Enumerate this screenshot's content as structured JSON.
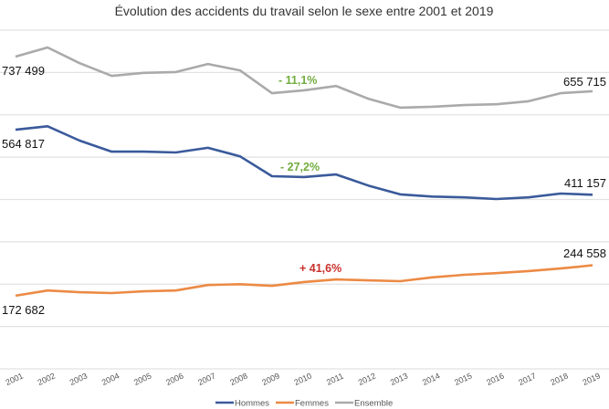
{
  "chart_data": {
    "type": "line",
    "title": "Évolution des accidents du travail selon le sexe entre 2001 et 2019",
    "xlabel": "",
    "ylabel": "",
    "ylim": [
      0,
      800000
    ],
    "grid": true,
    "legend_position": "bottom",
    "categories": [
      "2001",
      "2002",
      "2003",
      "2004",
      "2005",
      "2006",
      "2007",
      "2008",
      "2009",
      "2010",
      "2011",
      "2012",
      "2013",
      "2014",
      "2015",
      "2016",
      "2017",
      "2018",
      "2019"
    ],
    "series": [
      {
        "name": "Hommes",
        "color": "#3a5a9b",
        "values": [
          564817,
          573000,
          539000,
          513000,
          513000,
          511000,
          522000,
          502000,
          455000,
          453000,
          459000,
          433000,
          412000,
          407000,
          405000,
          401000,
          405000,
          414000,
          411157
        ]
      },
      {
        "name": "Femmes",
        "color": "#ec8a45",
        "values": [
          172682,
          185000,
          181000,
          179000,
          183000,
          185000,
          198000,
          200000,
          196000,
          205000,
          211000,
          209000,
          207000,
          216000,
          222000,
          226000,
          231000,
          237000,
          244558
        ]
      },
      {
        "name": "Ensemble",
        "color": "#aaaaaa",
        "values": [
          737499,
          759000,
          722000,
          692000,
          699000,
          701000,
          720000,
          705000,
          651000,
          658000,
          668000,
          638000,
          617000,
          619000,
          623000,
          625000,
          632000,
          651000,
          655715
        ]
      }
    ],
    "data_labels": {
      "ensemble_start": "737 499",
      "ensemble_end": "655 715",
      "hommes_start": "564 817",
      "hommes_end": "411 157",
      "femmes_start": "172 682",
      "femmes_end": "244 558"
    },
    "annotations": [
      {
        "text": "- 11,1%",
        "color": "#72ac3f"
      },
      {
        "text": "- 27,2%",
        "color": "#72ac3f"
      },
      {
        "text": "+ 41,6%",
        "color": "#c9302c"
      }
    ]
  }
}
